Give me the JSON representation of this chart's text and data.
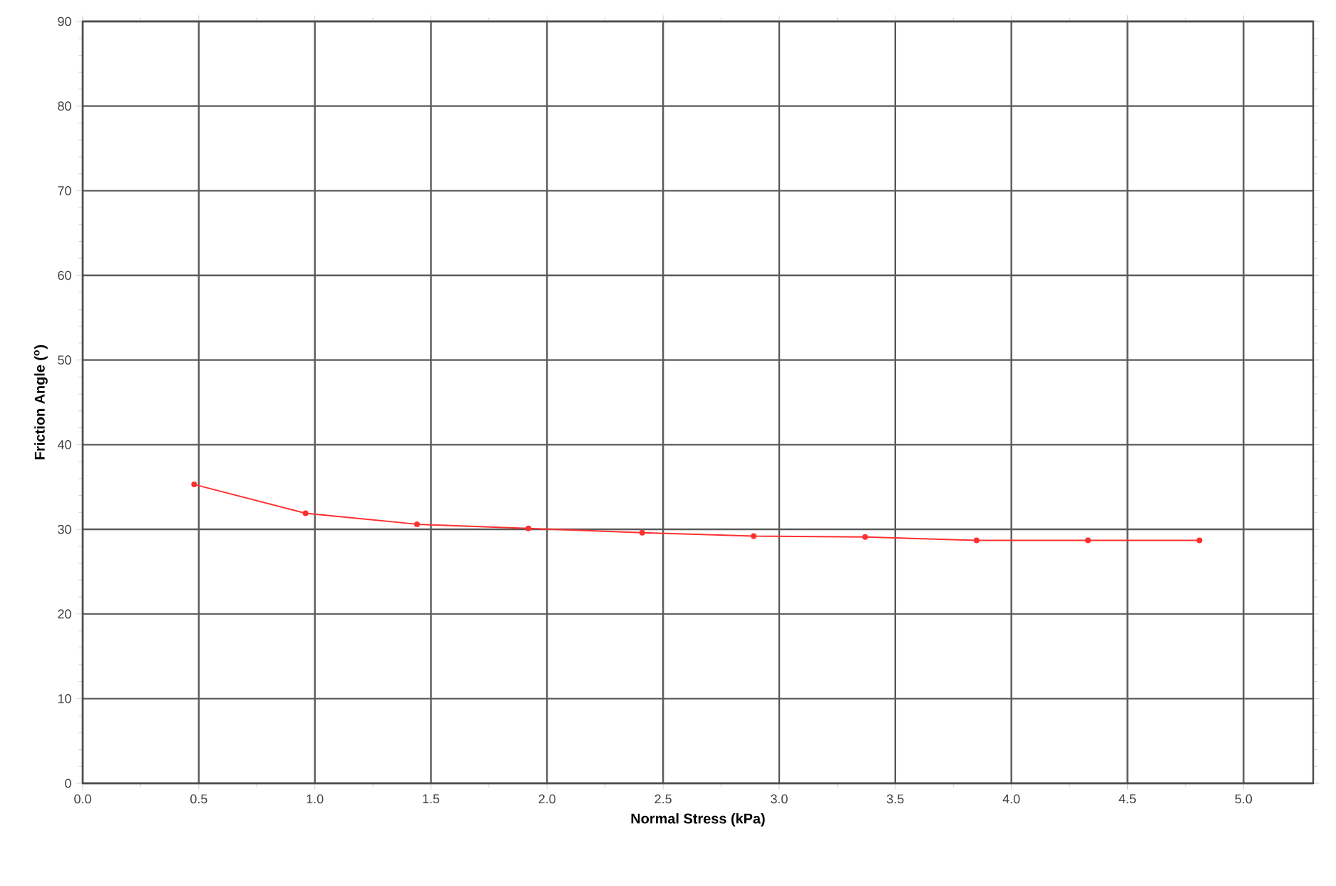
{
  "chart_data": {
    "type": "line",
    "xlabel": "Normal Stress (kPa)",
    "ylabel": "Friction Angle ($^{o}$)",
    "x": [
      0.48,
      0.96,
      1.44,
      1.92,
      2.41,
      2.89,
      3.37,
      3.85,
      4.33,
      4.81
    ],
    "series": [
      {
        "color": "#ff3030",
        "values": [
          35.3,
          31.9,
          30.6,
          30.1,
          29.6,
          29.2,
          29.1,
          28.7,
          28.7,
          28.7
        ]
      }
    ],
    "xlim": [
      0,
      5.3
    ],
    "xticks": [
      {
        "value": 0,
        "label": "0.0"
      },
      0.5,
      {
        "value": 1,
        "label": "1.0"
      },
      1.5,
      {
        "value": 2,
        "label": "2.0"
      },
      2.5,
      {
        "value": 3,
        "label": "3.0"
      },
      3.5,
      {
        "value": 4,
        "label": "4.0"
      },
      4.5,
      {
        "value": 5,
        "label": "5.0"
      }
    ],
    "ylim": [
      0,
      90
    ],
    "yticks": [
      0,
      10,
      20,
      30,
      40,
      50,
      60,
      70,
      80,
      90
    ],
    "grid": true,
    "marker": "circle",
    "line_style": "solid"
  }
}
